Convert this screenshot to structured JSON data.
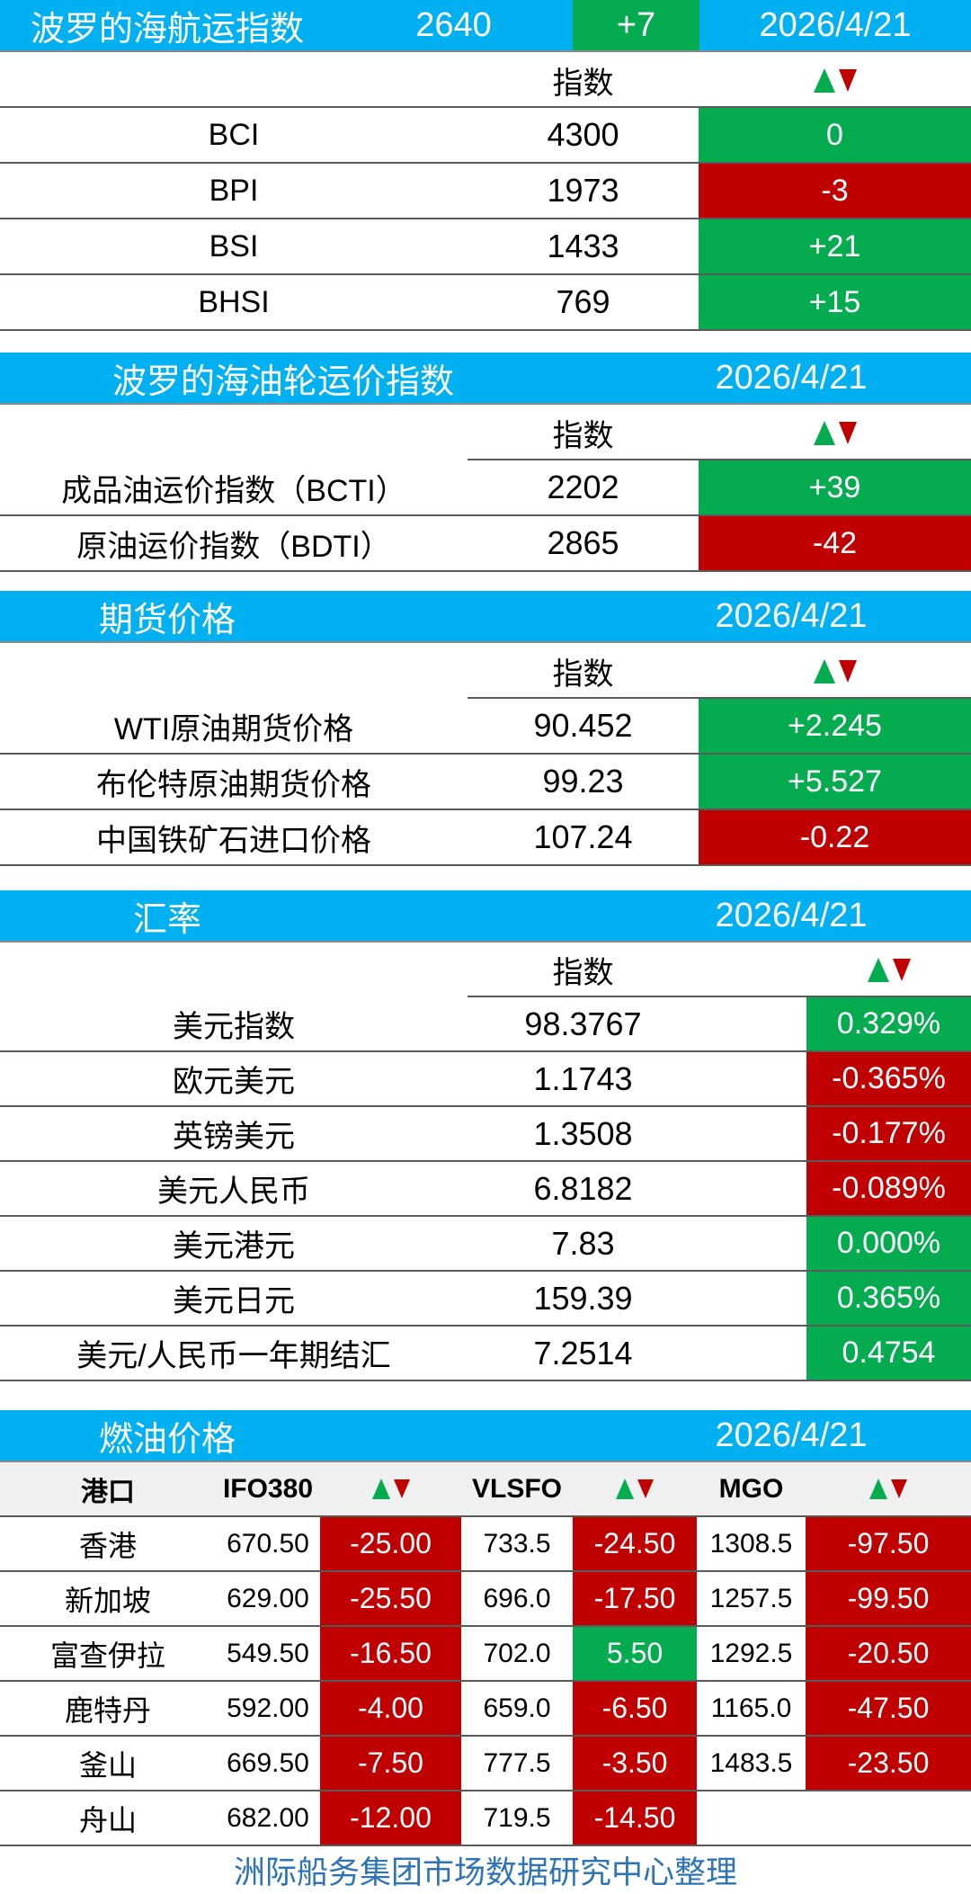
{
  "colors": {
    "header_blue": "#00B0F0",
    "up_green": "#04AB4F",
    "down_red": "#C00000",
    "footer_blue": "#2E74B5",
    "subheader_gray": "#F0F0F0",
    "border_dark": "#595959"
  },
  "icons": {
    "change_indicator": "up-down-triangles"
  },
  "chart_data": {
    "type": "table",
    "tables": [
      {
        "title": "波罗的海航运指数",
        "summary_value": "2640",
        "summary_change": "+7",
        "summary_change_dir": "up",
        "date": "2026/4/21",
        "index_col_label": "指数",
        "rows": [
          {
            "label": "BCI",
            "value": "4300",
            "change": "0",
            "dir": "up"
          },
          {
            "label": "BPI",
            "value": "1973",
            "change": "-3",
            "dir": "down"
          },
          {
            "label": "BSI",
            "value": "1433",
            "change": "+21",
            "dir": "up"
          },
          {
            "label": "BHSI",
            "value": "769",
            "change": "+15",
            "dir": "up"
          }
        ]
      },
      {
        "title": "波罗的海油轮运价指数",
        "date": "2026/4/21",
        "index_col_label": "指数",
        "rows": [
          {
            "label": "成品油运价指数（BCTI）",
            "value": "2202",
            "change": "+39",
            "dir": "up"
          },
          {
            "label": "原油运价指数（BDTI）",
            "value": "2865",
            "change": "-42",
            "dir": "down"
          }
        ]
      },
      {
        "title": "期货价格",
        "date": "2026/4/21",
        "index_col_label": "指数",
        "rows": [
          {
            "label": "WTI原油期货价格",
            "value": "90.452",
            "change": "+2.245",
            "dir": "up"
          },
          {
            "label": "布伦特原油期货价格",
            "value": "99.23",
            "change": "+5.527",
            "dir": "up"
          },
          {
            "label": "中国铁矿石进口价格",
            "value": "107.24",
            "change": "-0.22",
            "dir": "down"
          }
        ]
      },
      {
        "title": "汇率",
        "date": "2026/4/21",
        "index_col_label": "指数",
        "rows": [
          {
            "label": "美元指数",
            "value": "98.3767",
            "change": "0.329%",
            "dir": "up"
          },
          {
            "label": "欧元美元",
            "value": "1.1743",
            "change": "-0.365%",
            "dir": "down"
          },
          {
            "label": "英镑美元",
            "value": "1.3508",
            "change": "-0.177%",
            "dir": "down"
          },
          {
            "label": "美元人民币",
            "value": "6.8182",
            "change": "-0.089%",
            "dir": "down"
          },
          {
            "label": "美元港元",
            "value": "7.83",
            "change": "0.000%",
            "dir": "up"
          },
          {
            "label": "美元日元",
            "value": "159.39",
            "change": "0.365%",
            "dir": "up"
          },
          {
            "label": "美元/人民币一年期结汇",
            "value": "7.2514",
            "change": "0.4754",
            "dir": "up"
          }
        ]
      },
      {
        "title": "燃油价格",
        "date": "2026/4/21",
        "col_port": "港口",
        "col_ifo": "IFO380",
        "col_vlsfo": "VLSFO",
        "col_mgo": "MGO",
        "rows": [
          {
            "port": "香港",
            "ifo": "670.50",
            "ifo_chg": "-25.00",
            "ifo_dir": "down",
            "vlsfo": "733.5",
            "vlsfo_chg": "-24.50",
            "vlsfo_dir": "down",
            "mgo": "1308.5",
            "mgo_chg": "-97.50",
            "mgo_dir": "down"
          },
          {
            "port": "新加坡",
            "ifo": "629.00",
            "ifo_chg": "-25.50",
            "ifo_dir": "down",
            "vlsfo": "696.0",
            "vlsfo_chg": "-17.50",
            "vlsfo_dir": "down",
            "mgo": "1257.5",
            "mgo_chg": "-99.50",
            "mgo_dir": "down"
          },
          {
            "port": "富查伊拉",
            "ifo": "549.50",
            "ifo_chg": "-16.50",
            "ifo_dir": "down",
            "vlsfo": "702.0",
            "vlsfo_chg": "5.50",
            "vlsfo_dir": "up",
            "mgo": "1292.5",
            "mgo_chg": "-20.50",
            "mgo_dir": "down"
          },
          {
            "port": "鹿特丹",
            "ifo": "592.00",
            "ifo_chg": "-4.00",
            "ifo_dir": "down",
            "vlsfo": "659.0",
            "vlsfo_chg": "-6.50",
            "vlsfo_dir": "down",
            "mgo": "1165.0",
            "mgo_chg": "-47.50",
            "mgo_dir": "down"
          },
          {
            "port": "釜山",
            "ifo": "669.50",
            "ifo_chg": "-7.50",
            "ifo_dir": "down",
            "vlsfo": "777.5",
            "vlsfo_chg": "-3.50",
            "vlsfo_dir": "down",
            "mgo": "1483.5",
            "mgo_chg": "-23.50",
            "mgo_dir": "down"
          },
          {
            "port": "舟山",
            "ifo": "682.00",
            "ifo_chg": "-12.00",
            "ifo_dir": "down",
            "vlsfo": "719.5",
            "vlsfo_chg": "-14.50",
            "vlsfo_dir": "down",
            "mgo": "",
            "mgo_chg": "",
            "mgo_dir": ""
          }
        ]
      }
    ]
  },
  "footer": "洲际船务集团市场数据研究中心整理"
}
